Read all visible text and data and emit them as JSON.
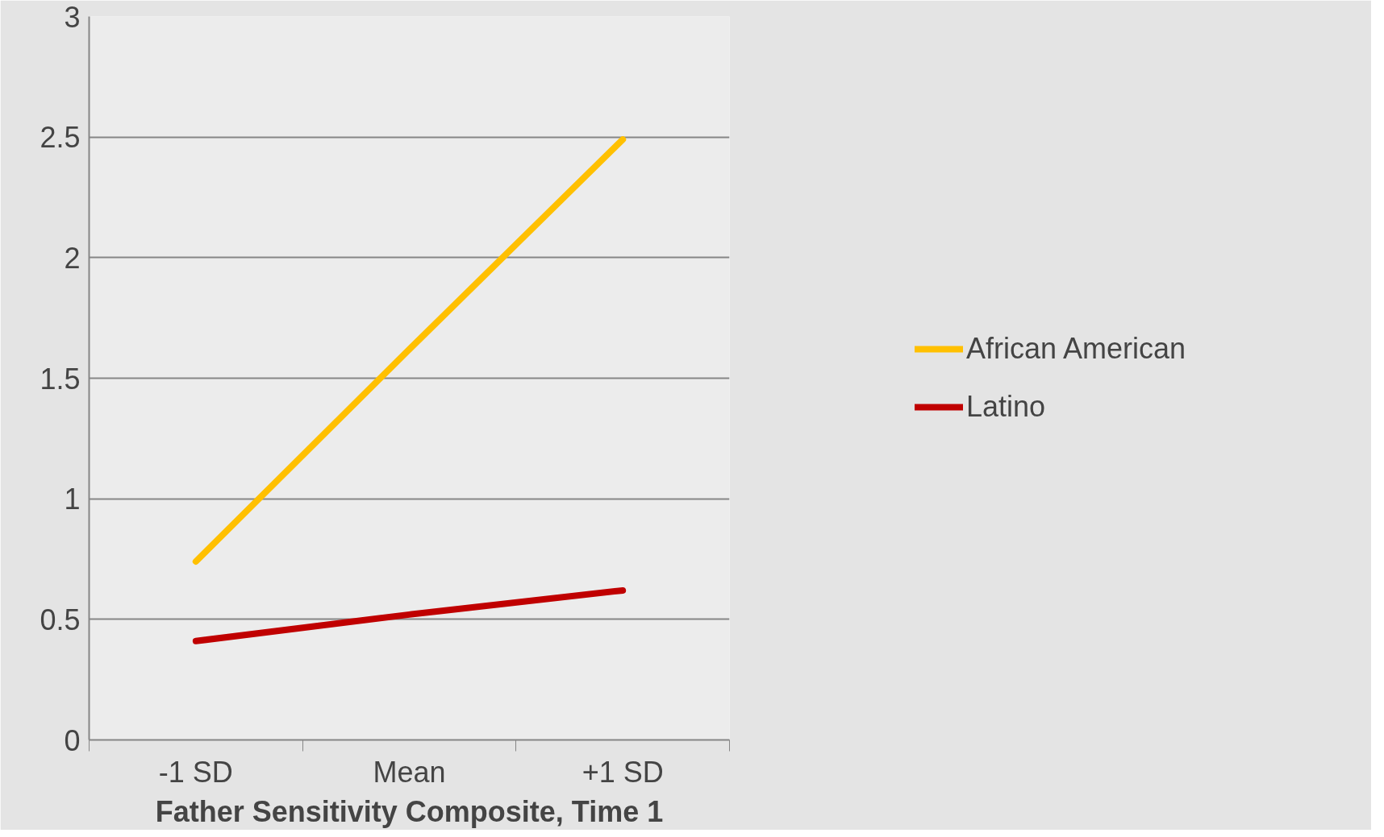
{
  "chart_data": {
    "type": "line",
    "xlabel": "Father Sensitivity Composite, Time 1",
    "categories": [
      "-1 SD",
      "Mean",
      "+1 SD"
    ],
    "series": [
      {
        "name": "African American",
        "color": "#ffc000",
        "values": [
          0.74,
          1.62,
          2.49
        ]
      },
      {
        "name": "Latino",
        "color": "#c00000",
        "values": [
          0.41,
          0.52,
          0.62
        ]
      }
    ],
    "ylim": [
      0,
      3
    ],
    "yticks": [
      0,
      0.5,
      1,
      1.5,
      2,
      2.5,
      3
    ],
    "grid": "y",
    "legend": "right",
    "line_style": "solid",
    "marker": "none"
  }
}
